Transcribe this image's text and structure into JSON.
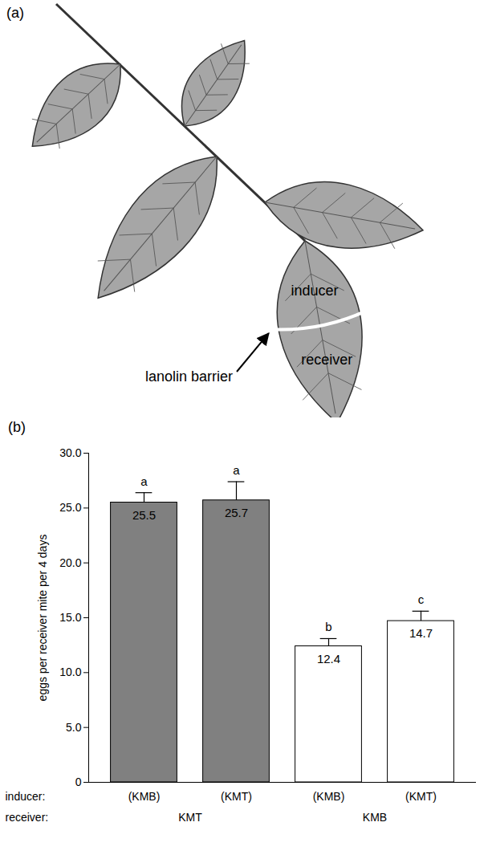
{
  "panel_a": {
    "panel_label": "(a)",
    "inducer_text": "inducer",
    "receiver_text": "receiver",
    "barrier_text": "lanolin barrier"
  },
  "chart_data": {
    "type": "bar",
    "panel_label": "(b)",
    "y_label": "eggs per receiver mite per 4 days",
    "inducer_label": "inducer:",
    "receiver_label": "receiver:",
    "categories": [
      "(KMB)",
      "(KMT)",
      "(KMB)",
      "(KMT)"
    ],
    "receivers": [
      "KMT",
      "KMT",
      "KMB",
      "KMB"
    ],
    "values": [
      25.5,
      25.7,
      12.4,
      14.7
    ],
    "errors": [
      0.9,
      1.7,
      0.7,
      0.9
    ],
    "significance": [
      "a",
      "a",
      "b",
      "c"
    ],
    "colors": [
      "#808080",
      "#808080",
      "#ffffff",
      "#ffffff"
    ],
    "data_labels": true,
    "ylim": [
      0,
      30
    ],
    "yticks": [
      0,
      {
        "value": 5,
        "label": "5.0"
      },
      {
        "value": 10,
        "label": "10.0"
      },
      {
        "value": 15,
        "label": "15.0"
      },
      {
        "value": 20,
        "label": "20.0"
      },
      {
        "value": 25,
        "label": "25.0"
      },
      {
        "value": 30,
        "label": "30.0"
      }
    ]
  }
}
